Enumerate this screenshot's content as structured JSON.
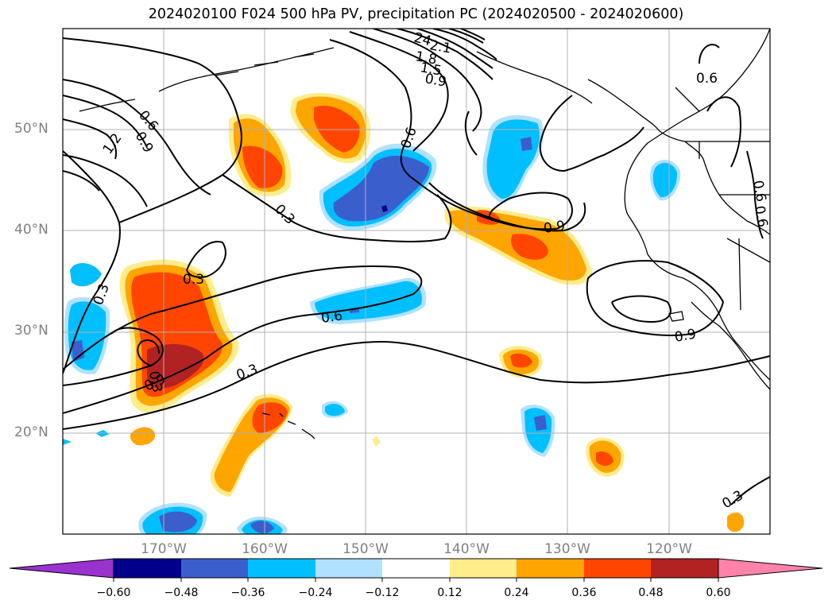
{
  "title": "2024020100 F024 500 hPa PV, precipitation PC (2024020500 - 2024020600)",
  "map": {
    "projection": "PlateCarree",
    "lon_range": [
      -177,
      -107
    ],
    "lat_range": [
      10,
      60
    ],
    "lat_ticks": [
      "20°N",
      "30°N",
      "40°N",
      "50°N"
    ],
    "lon_ticks": [
      "170°W",
      "160°W",
      "150°W",
      "140°W",
      "130°W",
      "120°W"
    ],
    "gridlines": true
  },
  "contour_labels": [
    "24",
    "2.1",
    "1.8",
    "1.5",
    "0.9",
    "1.2",
    "0.6",
    "0.9",
    "0.6",
    "0.6",
    "0.3",
    "0.3",
    "0.6",
    "0.9",
    "0.6",
    "0.3",
    "0.9",
    "0.3",
    "0.9",
    "0.3",
    "0.6",
    "0.3"
  ],
  "colorbar": {
    "labels": [
      "−0.60",
      "−0.48",
      "−0.36",
      "−0.24",
      "−0.12",
      "0.12",
      "0.24",
      "0.36",
      "0.48",
      "0.60"
    ],
    "colors": [
      "#9a32cd",
      "#00008b",
      "#3a5fcd",
      "#00bfff",
      "#b0e2ff",
      "#ffffff",
      "#ffec8b",
      "#ffa500",
      "#ff4500",
      "#b22222",
      "#ff82ab"
    ],
    "extend": "both"
  },
  "colors": {
    "positive_weak": "#ffec8b",
    "positive_mid": "#ffa500",
    "positive_strong": "#ff4500",
    "positive_max": "#b22222",
    "negative_weak": "#b0e2ff",
    "negative_mid": "#00bfff",
    "negative_strong": "#3a5fcd",
    "negative_max": "#00008b",
    "grid": "#b0b0b0",
    "contour": "#000000"
  }
}
